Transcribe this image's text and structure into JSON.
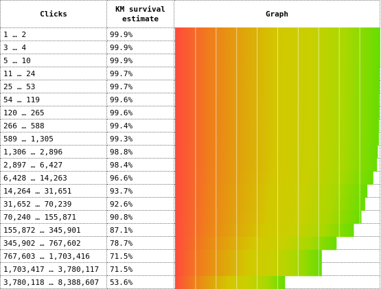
{
  "headers": {
    "clicks": "Clicks",
    "km_line1": "KM survival",
    "km_line2": "estimate",
    "graph": "Graph"
  },
  "rows": [
    {
      "clicks": "1 … 2",
      "estimate": "99.9%"
    },
    {
      "clicks": "3 … 4",
      "estimate": "99.9%"
    },
    {
      "clicks": "5 … 10",
      "estimate": "99.9%"
    },
    {
      "clicks": "11 … 24",
      "estimate": "99.7%"
    },
    {
      "clicks": "25 … 53",
      "estimate": "99.7%"
    },
    {
      "clicks": "54 … 119",
      "estimate": "99.6%"
    },
    {
      "clicks": "120 … 265",
      "estimate": "99.6%"
    },
    {
      "clicks": "266 … 588",
      "estimate": "99.4%"
    },
    {
      "clicks": "589 … 1,305",
      "estimate": "99.3%"
    },
    {
      "clicks": "1,306 … 2,896",
      "estimate": "98.8%"
    },
    {
      "clicks": "2,897 … 6,427",
      "estimate": "98.4%"
    },
    {
      "clicks": "6,428 … 14,263",
      "estimate": "96.6%"
    },
    {
      "clicks": "14,264 … 31,651",
      "estimate": "93.7%"
    },
    {
      "clicks": "31,652 … 70,239",
      "estimate": "92.6%"
    },
    {
      "clicks": "70,240 … 155,871",
      "estimate": "90.8%"
    },
    {
      "clicks": "155,872 … 345,901",
      "estimate": "87.1%"
    },
    {
      "clicks": "345,902 … 767,602",
      "estimate": "78.7%"
    },
    {
      "clicks": "767,603 … 1,703,416",
      "estimate": "71.5%"
    },
    {
      "clicks": "1,703,417 … 3,780,117",
      "estimate": "71.5%"
    },
    {
      "clicks": "3,780,118 … 8,388,607",
      "estimate": "53.6%"
    }
  ],
  "chart_data": {
    "type": "bar",
    "categories": [
      "1 … 2",
      "3 … 4",
      "5 … 10",
      "11 … 24",
      "25 … 53",
      "54 … 119",
      "120 … 265",
      "266 … 588",
      "589 … 1,305",
      "1,306 … 2,896",
      "2,897 … 6,427",
      "6,428 … 14,263",
      "14,264 … 31,651",
      "31,652 … 70,239",
      "70,240 … 155,871",
      "155,872 … 345,901",
      "345,902 … 767,602",
      "767,603 … 1,703,416",
      "1,703,417 … 3,780,117",
      "3,780,118 … 8,388,607"
    ],
    "values": [
      99.9,
      99.9,
      99.9,
      99.7,
      99.7,
      99.6,
      99.6,
      99.4,
      99.3,
      98.8,
      98.4,
      96.6,
      93.7,
      92.6,
      90.8,
      87.1,
      78.7,
      71.5,
      71.5,
      53.6
    ],
    "unit": "%",
    "xlim": [
      0,
      100
    ],
    "orientation": "horizontal",
    "gradient_colors": [
      "#ff4b3c",
      "#f07d1c",
      "#dfa50a",
      "#d2c800",
      "#c8d000",
      "#a8d800",
      "#66dd00"
    ],
    "title": "",
    "xlabel": "",
    "ylabel": ""
  }
}
